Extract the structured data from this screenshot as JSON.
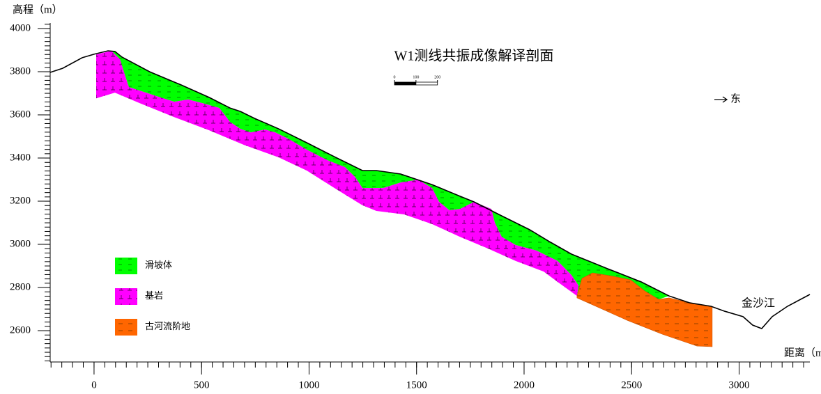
{
  "chart_data": {
    "type": "section",
    "title": "W1测线共振成像解译剖面",
    "y_label": "高程（m）",
    "x_label": "距离（m）",
    "direction_label": "东",
    "river_label": "金沙江",
    "xlim": [
      -204,
      3329
    ],
    "ylim": [
      2455,
      4026
    ],
    "xticks": [
      0,
      500,
      1000,
      1500,
      2000,
      2500,
      3000
    ],
    "yticks": [
      2600,
      2800,
      3000,
      3200,
      3400,
      3600,
      3800,
      4000
    ],
    "scale_bar": [
      0,
      100,
      200
    ],
    "ground_line": {
      "color": "#000000",
      "x": [
        -204,
        -146,
        -55,
        0,
        65,
        97,
        130,
        259,
        405,
        535,
        632,
        681,
        746,
        859,
        989,
        1118,
        1248,
        1313,
        1426,
        1572,
        1702,
        1767,
        1896,
        2026,
        2123,
        2220,
        2382,
        2545,
        2674,
        2771,
        2869,
        2934,
        3018,
        3063,
        3105,
        3154,
        3225,
        3329
      ],
      "y": [
        3797,
        3816,
        3865,
        3881,
        3897,
        3894,
        3868,
        3800,
        3739,
        3681,
        3632,
        3616,
        3584,
        3535,
        3471,
        3406,
        3342,
        3342,
        3326,
        3277,
        3223,
        3197,
        3132,
        3068,
        3010,
        2955,
        2890,
        2826,
        2761,
        2729,
        2713,
        2690,
        2665,
        2626,
        2610,
        2665,
        2713,
        2768
      ]
    },
    "series": [
      {
        "name": "滑坡体",
        "color": "#00ff00",
        "x": [
          81,
          97,
          130,
          259,
          405,
          535,
          632,
          681,
          746,
          859,
          989,
          1118,
          1248,
          1313,
          1426,
          1572,
          1702,
          1767,
          1896,
          2026,
          2123,
          2220,
          2382,
          2545,
          2674,
          2626,
          2561,
          2496,
          2415,
          2318,
          2269,
          2246,
          2253,
          2220,
          2156,
          2058,
          1961,
          1896,
          1864,
          1848,
          1767,
          1702,
          1653,
          1605,
          1572,
          1507,
          1426,
          1345,
          1248,
          1216,
          1167,
          1086,
          989,
          908,
          843,
          794,
          729,
          681,
          632,
          583,
          502,
          438,
          373,
          308,
          211,
          162,
          146,
          120
        ],
        "y": [
          3897,
          3894,
          3868,
          3800,
          3739,
          3681,
          3632,
          3616,
          3584,
          3535,
          3471,
          3406,
          3342,
          3342,
          3326,
          3277,
          3223,
          3197,
          3132,
          3068,
          3010,
          2955,
          2890,
          2826,
          2761,
          2745,
          2784,
          2835,
          2852,
          2868,
          2842,
          2761,
          2810,
          2858,
          2923,
          2971,
          2997,
          3035,
          3100,
          3164,
          3197,
          3164,
          3158,
          3197,
          3261,
          3300,
          3287,
          3261,
          3261,
          3310,
          3358,
          3390,
          3439,
          3487,
          3519,
          3532,
          3519,
          3535,
          3568,
          3632,
          3655,
          3671,
          3661,
          3681,
          3713,
          3729,
          3777,
          3858
        ]
      },
      {
        "name": "基岩",
        "color": "#ff00ff",
        "x": [
          10,
          10,
          97,
          211,
          373,
          535,
          697,
          859,
          989,
          1118,
          1248,
          1313,
          1442,
          1572,
          1702,
          1831,
          1961,
          2091,
          2156,
          2246,
          2253,
          2220,
          2156,
          2058,
          1961,
          1896,
          1864,
          1848,
          1767,
          1702,
          1653,
          1605,
          1572,
          1507,
          1426,
          1345,
          1248,
          1216,
          1167,
          1086,
          989,
          908,
          843,
          794,
          729,
          681,
          632,
          583,
          502,
          438,
          373,
          308,
          211,
          162,
          146,
          120,
          81
        ],
        "y": [
          3880,
          3677,
          3703,
          3655,
          3590,
          3529,
          3461,
          3403,
          3342,
          3261,
          3181,
          3155,
          3139,
          3094,
          3035,
          2981,
          2923,
          2874,
          2826,
          2761,
          2810,
          2858,
          2923,
          2971,
          2997,
          3035,
          3100,
          3164,
          3197,
          3164,
          3158,
          3197,
          3261,
          3300,
          3287,
          3261,
          3261,
          3310,
          3358,
          3390,
          3439,
          3487,
          3519,
          3532,
          3519,
          3535,
          3568,
          3632,
          3655,
          3671,
          3661,
          3681,
          3713,
          3729,
          3777,
          3858,
          3897
        ]
      },
      {
        "name": "古河流阶地",
        "color": "#ff6600",
        "x": [
          2246,
          2269,
          2318,
          2415,
          2496,
          2561,
          2626,
          2674,
          2771,
          2875,
          2875,
          2804,
          2642,
          2480,
          2350,
          2246
        ],
        "y": [
          2761,
          2842,
          2868,
          2852,
          2835,
          2784,
          2745,
          2752,
          2729,
          2713,
          2526,
          2529,
          2584,
          2648,
          2706,
          2752
        ]
      }
    ]
  }
}
